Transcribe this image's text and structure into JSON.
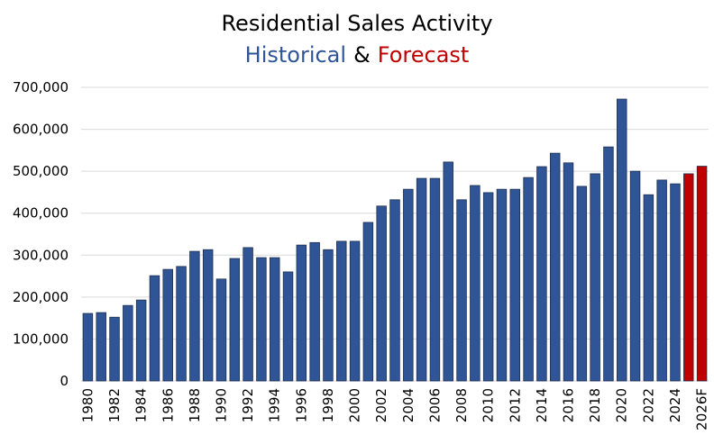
{
  "chart_data": {
    "type": "bar",
    "title": "Residential Sales Activity",
    "subtitle": [
      "Historical",
      "&",
      "Forecast"
    ],
    "subtitle_colors": [
      "#2f5597",
      "#000000",
      "#c00000"
    ],
    "categories": [
      "1980",
      null,
      "1982",
      null,
      "1984",
      null,
      "1986",
      null,
      "1988",
      null,
      "1990",
      null,
      "1992",
      null,
      "1994",
      null,
      "1996",
      null,
      "1998",
      null,
      "2000",
      null,
      "2002",
      null,
      "2004",
      null,
      "2006",
      null,
      "2008",
      null,
      "2010",
      null,
      "2012",
      null,
      "2014",
      null,
      "2016",
      null,
      "2018",
      null,
      "2020",
      null,
      "2022",
      null,
      "2024",
      null,
      "2026F"
    ],
    "values": [
      161000,
      163000,
      152000,
      180000,
      193000,
      251000,
      266000,
      273000,
      309000,
      313000,
      243000,
      292000,
      318000,
      294000,
      294000,
      260000,
      324000,
      330000,
      313000,
      333000,
      333000,
      378000,
      417000,
      432000,
      457000,
      483000,
      483000,
      522000,
      432000,
      466000,
      449000,
      457000,
      457000,
      485000,
      511000,
      543000,
      520000,
      464000,
      494000,
      558000,
      672000,
      500000,
      444000,
      479000,
      470000,
      494000,
      512000
    ],
    "colors": [
      "#2f5597",
      "#2f5597",
      "#2f5597",
      "#2f5597",
      "#2f5597",
      "#2f5597",
      "#2f5597",
      "#2f5597",
      "#2f5597",
      "#2f5597",
      "#2f5597",
      "#2f5597",
      "#2f5597",
      "#2f5597",
      "#2f5597",
      "#2f5597",
      "#2f5597",
      "#2f5597",
      "#2f5597",
      "#2f5597",
      "#2f5597",
      "#2f5597",
      "#2f5597",
      "#2f5597",
      "#2f5597",
      "#2f5597",
      "#2f5597",
      "#2f5597",
      "#2f5597",
      "#2f5597",
      "#2f5597",
      "#2f5597",
      "#2f5597",
      "#2f5597",
      "#2f5597",
      "#2f5597",
      "#2f5597",
      "#2f5597",
      "#2f5597",
      "#2f5597",
      "#2f5597",
      "#2f5597",
      "#2f5597",
      "#2f5597",
      "#2f5597",
      "#c00000",
      "#c00000"
    ],
    "ylim": [
      0,
      700000
    ],
    "yticks": [
      0,
      {
        "value": 100000,
        "label": "100,000"
      },
      {
        "value": 200000,
        "label": "200,000"
      },
      {
        "value": 300000,
        "label": "300,000"
      },
      {
        "value": 400000,
        "label": "400,000"
      },
      {
        "value": 500000,
        "label": "500,000"
      },
      {
        "value": 600000,
        "label": "600,000"
      },
      {
        "value": 700000,
        "label": "700,000"
      }
    ],
    "grid": true
  }
}
